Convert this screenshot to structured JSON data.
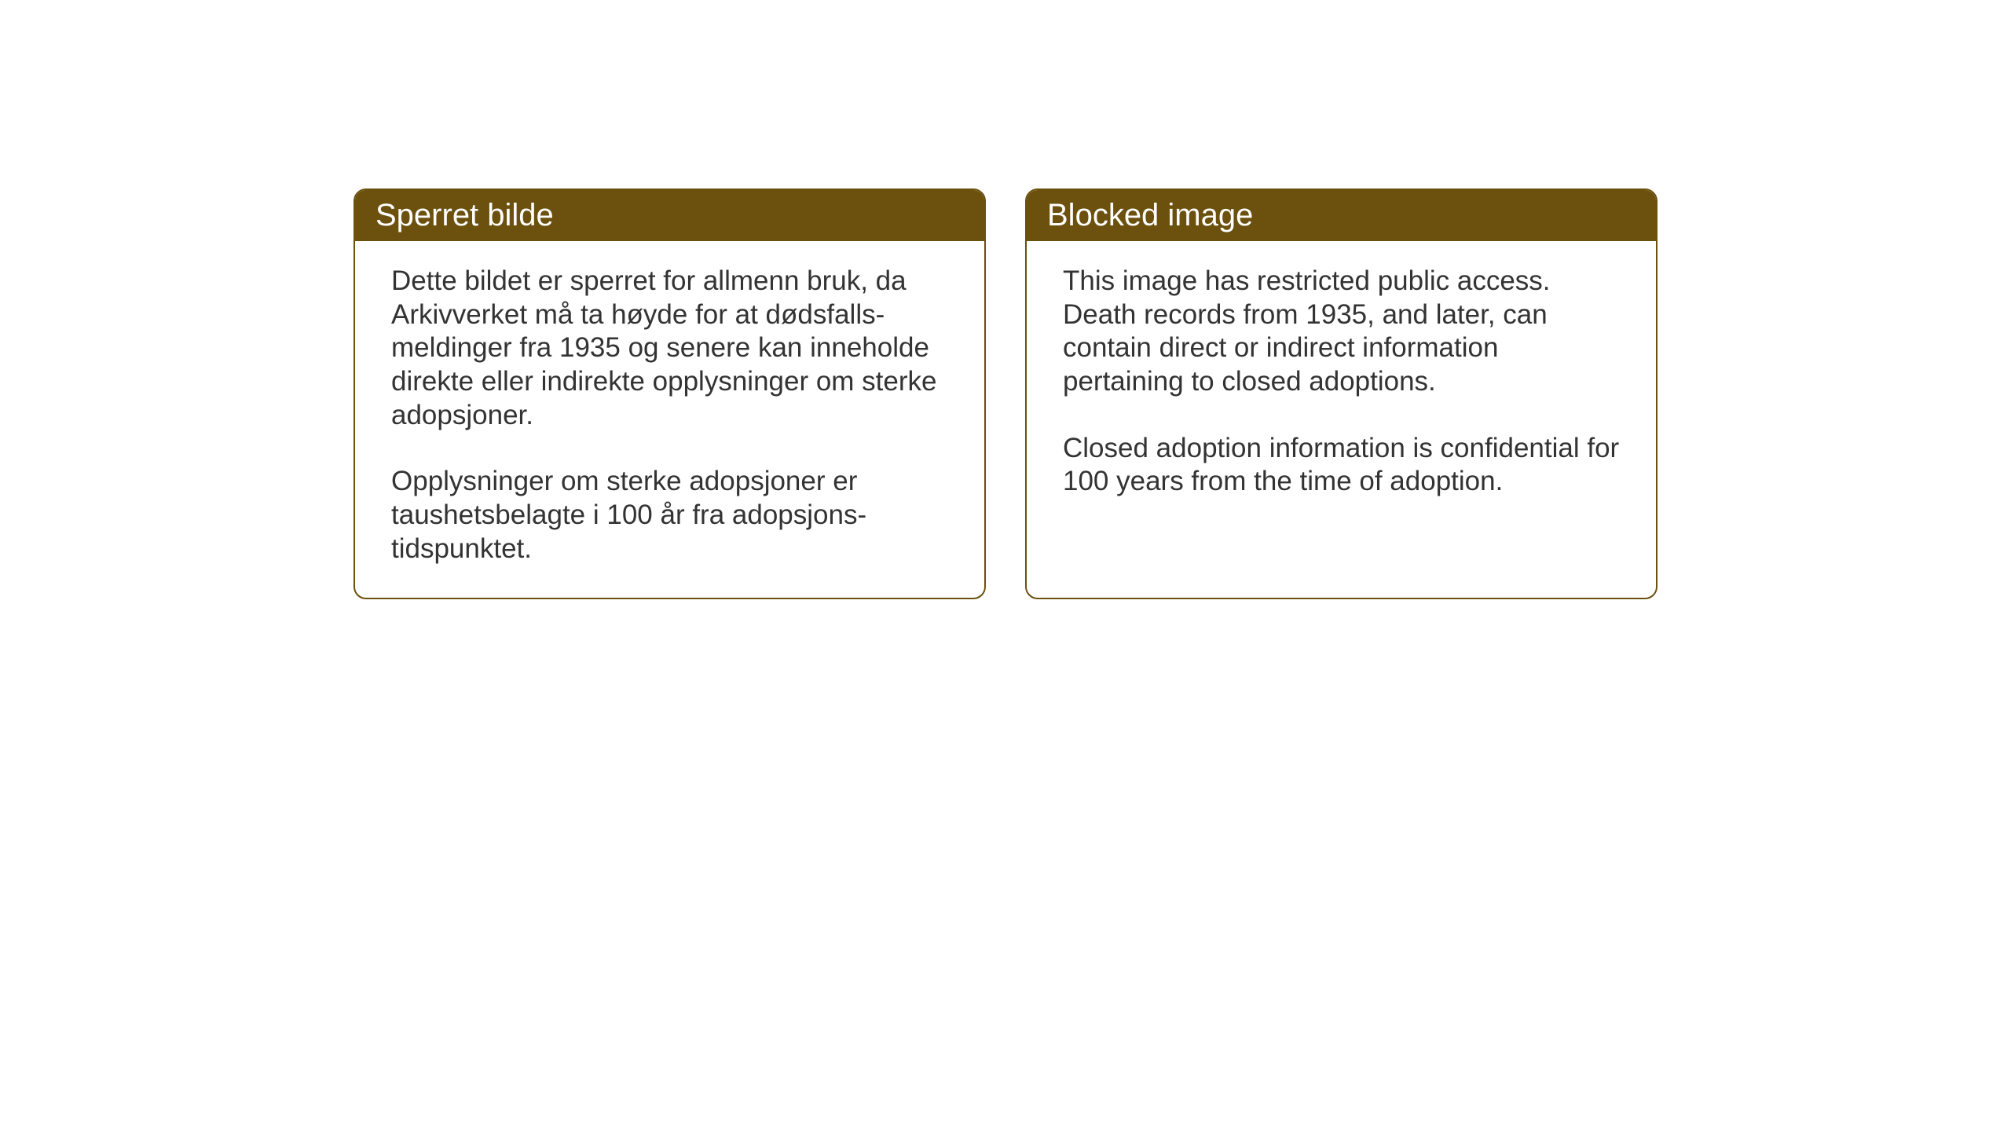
{
  "page": {
    "background_color": "#ffffff"
  },
  "notices": {
    "norwegian": {
      "title": "Sperret bilde",
      "paragraph1": "Dette bildet er sperret for allmenn bruk, da Arkivverket må ta høyde for at dødsfalls-meldinger fra 1935 og senere kan inneholde direkte eller indirekte opplysninger om sterke adopsjoner.",
      "paragraph2": "Opplysninger om sterke adopsjoner er taushetsbelagte i 100 år fra adopsjons-tidspunktet."
    },
    "english": {
      "title": "Blocked image",
      "paragraph1": "This image has restricted public access. Death records from 1935, and later, can contain direct or indirect information pertaining to closed adoptions.",
      "paragraph2": "Closed adoption information is confidential for 100 years from the time of adoption."
    }
  },
  "styling": {
    "header_background": "#6b500e",
    "header_text_color": "#ffffff",
    "border_color": "#6b500e",
    "body_text_color": "#333333",
    "border_radius": 16,
    "header_fontsize": 40,
    "body_fontsize": 35
  }
}
